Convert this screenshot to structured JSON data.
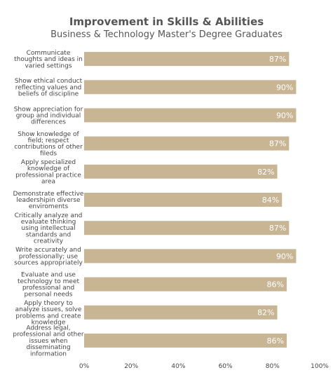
{
  "chart_data": {
    "type": "bar",
    "orientation": "horizontal",
    "title": "Improvement in Skills & Abilities",
    "subtitle": "Business & Technology Master's Degree Graduates",
    "categories": [
      "Communicate thoughts and ideas in varied settings",
      "Show ethical conduct reflecting values and beliefs of discipline",
      "Show appreciation for group and individual differences",
      "Show knowledge of field; respect contributions of other fileds",
      "Apply specialized knowledge of professional practice area",
      "Demonstrate effective leadershipin diverse enviroments",
      "Critically analyze and evaluate thinking using intellectual standards and creativity",
      "Write accurately and professionally; use sources appropriately",
      "Evaluate and use technology to meet professional and personal needs",
      "Apply theory to analyze issues, solve problems and create knowledge",
      "Address legal, professional and other issues when disseminating information"
    ],
    "category_lines": [
      [
        "Communicate",
        "thoughts and ideas in",
        "varied settings"
      ],
      [
        "Show ethical conduct",
        "reflecting values and",
        "beliefs of discipline"
      ],
      [
        "Show appreciation for",
        "group and individual",
        "differences"
      ],
      [
        "Show knowledge of",
        "field; respect",
        "contributions of other",
        "fileds"
      ],
      [
        "Apply specialized",
        "knowledge of",
        "professional practice",
        "area"
      ],
      [
        "Demonstrate effective",
        "leadershipin diverse",
        "enviroments"
      ],
      [
        "Critically analyze and",
        "evaluate thinking",
        "using intellectual",
        "standards and",
        "creativity"
      ],
      [
        "Write accurately and",
        "professionally; use",
        "sources appropriately"
      ],
      [
        "Evaluate and use",
        "technology to meet",
        "professional and",
        "personal needs"
      ],
      [
        "Apply theory to",
        "analyze issues, solve",
        "problems and create",
        "knowledge"
      ],
      [
        "Address legal,",
        "professional and other",
        "issues when",
        "disseminating",
        "information"
      ]
    ],
    "values": [
      87,
      90,
      90,
      87,
      82,
      84,
      87,
      90,
      86,
      82,
      86
    ],
    "value_labels": [
      "87%",
      "90%",
      "90%",
      "87%",
      "82%",
      "84%",
      "87%",
      "90%",
      "86%",
      "82%",
      "86%"
    ],
    "xlim": [
      0,
      100
    ],
    "xticks": [
      "0%",
      "20%",
      "40%",
      "60%",
      "80%",
      "100%"
    ],
    "xlabel": "",
    "ylabel": "",
    "grid": false,
    "legend": "none",
    "bar_color": "#c8b594",
    "text_color": "#444444",
    "value_label_color": "#ffffff"
  }
}
